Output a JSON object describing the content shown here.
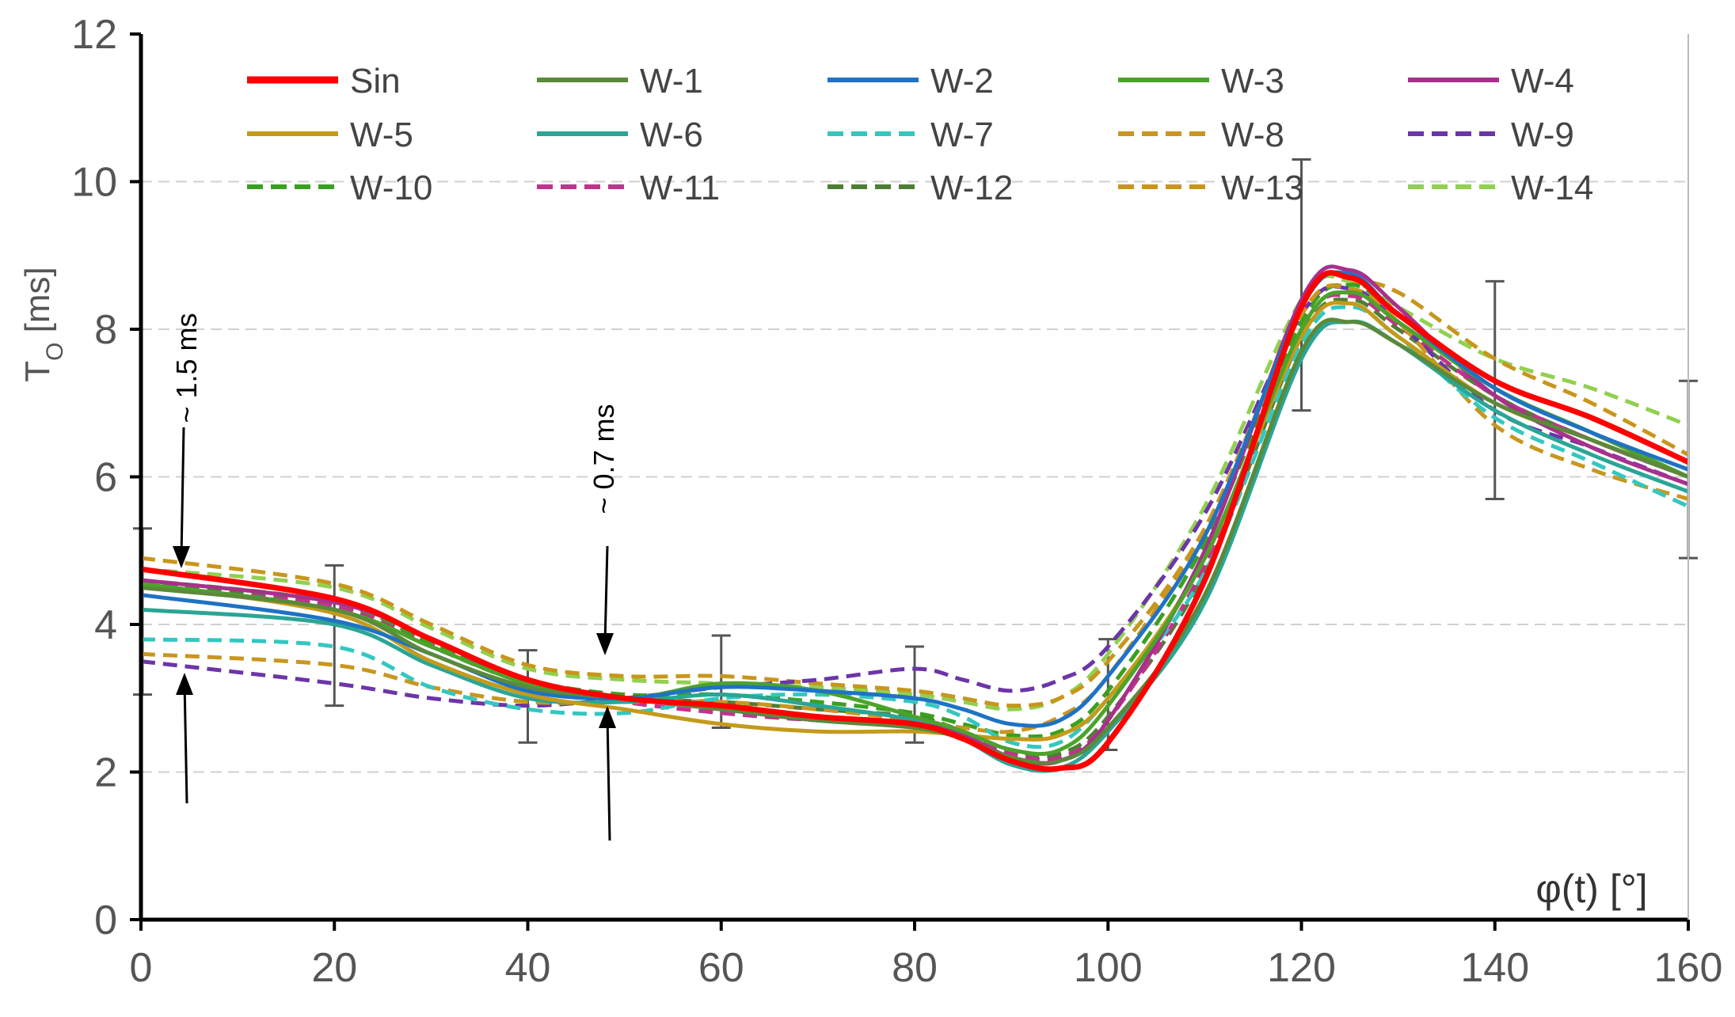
{
  "chart_data": {
    "type": "line",
    "title": "",
    "xlabel": "φ(t) [°]",
    "ylabel": "T",
    "ylabel_sub": "O",
    "ylabel_unit": " [ms]",
    "xlim": [
      0,
      160
    ],
    "ylim": [
      0,
      12
    ],
    "xticks": [
      0,
      20,
      40,
      60,
      80,
      100,
      120,
      140,
      160
    ],
    "yticks": [
      0,
      2,
      4,
      6,
      8,
      10,
      12
    ],
    "grid": "horizontal dashed",
    "annotations": [
      "~ 1.5 ms",
      "~ 0.7 ms"
    ],
    "series": [
      {
        "name": "Sin",
        "color": "#ff0000",
        "dash": "solid",
        "x": [
          0,
          20,
          30,
          40,
          50,
          60,
          70,
          80,
          85,
          90,
          95,
          100,
          110,
          120,
          125,
          130,
          140,
          150,
          160
        ],
        "y": [
          4.75,
          4.35,
          3.8,
          3.25,
          3.0,
          2.9,
          2.75,
          2.65,
          2.45,
          2.15,
          2.05,
          2.4,
          4.6,
          8.3,
          8.7,
          8.2,
          7.3,
          6.8,
          6.2
        ]
      },
      {
        "name": "W-1",
        "color": "#5a8a3a",
        "dash": "solid",
        "x": [
          0,
          20,
          30,
          40,
          50,
          60,
          70,
          80,
          85,
          90,
          95,
          100,
          110,
          120,
          125,
          130,
          140,
          150,
          160
        ],
        "y": [
          4.5,
          4.2,
          3.6,
          3.15,
          3.0,
          2.85,
          2.7,
          2.6,
          2.45,
          2.2,
          2.15,
          2.6,
          4.4,
          7.7,
          8.1,
          7.8,
          7.0,
          6.5,
          6.0
        ]
      },
      {
        "name": "W-2",
        "color": "#1f72c4",
        "dash": "solid",
        "x": [
          0,
          20,
          30,
          40,
          50,
          60,
          70,
          80,
          85,
          90,
          95,
          100,
          110,
          120,
          125,
          130,
          140,
          150,
          160
        ],
        "y": [
          4.4,
          4.05,
          3.6,
          3.1,
          3.0,
          3.15,
          3.1,
          3.0,
          2.85,
          2.65,
          2.7,
          3.3,
          5.2,
          8.3,
          8.75,
          8.2,
          7.2,
          6.6,
          6.1
        ]
      },
      {
        "name": "W-3",
        "color": "#4ca32a",
        "dash": "solid",
        "x": [
          0,
          20,
          30,
          40,
          50,
          60,
          70,
          80,
          85,
          90,
          95,
          100,
          110,
          120,
          125,
          130,
          140,
          150,
          160
        ],
        "y": [
          4.55,
          4.2,
          3.7,
          3.2,
          3.0,
          3.2,
          3.1,
          2.75,
          2.55,
          2.3,
          2.3,
          2.9,
          4.9,
          8.0,
          8.5,
          8.1,
          7.2,
          6.6,
          6.0
        ]
      },
      {
        "name": "W-4",
        "color": "#a8308c",
        "dash": "solid",
        "x": [
          0,
          20,
          30,
          40,
          50,
          60,
          70,
          80,
          85,
          90,
          95,
          100,
          110,
          120,
          125,
          130,
          140,
          150,
          160
        ],
        "y": [
          4.6,
          4.3,
          3.8,
          3.2,
          3.0,
          2.85,
          2.7,
          2.65,
          2.5,
          2.2,
          2.15,
          2.7,
          5.0,
          8.4,
          8.8,
          8.3,
          7.1,
          6.4,
          5.9
        ]
      },
      {
        "name": "W-5",
        "color": "#c49a1a",
        "dash": "solid",
        "x": [
          0,
          20,
          30,
          40,
          50,
          60,
          70,
          80,
          85,
          90,
          95,
          100,
          110,
          120,
          125,
          130,
          140,
          150,
          160
        ],
        "y": [
          4.55,
          4.15,
          3.5,
          3.05,
          2.85,
          2.65,
          2.55,
          2.55,
          2.5,
          2.45,
          2.5,
          3.0,
          4.9,
          7.9,
          8.35,
          7.9,
          7.0,
          6.5,
          6.0
        ]
      },
      {
        "name": "W-6",
        "color": "#2aa596",
        "dash": "solid",
        "x": [
          0,
          20,
          30,
          40,
          50,
          60,
          70,
          80,
          85,
          90,
          95,
          100,
          110,
          120,
          125,
          130,
          140,
          150,
          160
        ],
        "y": [
          4.2,
          4.0,
          3.45,
          3.0,
          2.95,
          3.05,
          2.9,
          2.7,
          2.45,
          2.1,
          2.05,
          2.55,
          4.3,
          7.6,
          8.1,
          7.8,
          6.9,
          6.3,
          5.8
        ]
      },
      {
        "name": "W-7",
        "color": "#33c7c0",
        "dash": "dashed",
        "x": [
          0,
          20,
          30,
          40,
          50,
          60,
          70,
          80,
          85,
          90,
          95,
          100,
          110,
          120,
          125,
          130,
          140,
          150,
          160
        ],
        "y": [
          3.8,
          3.7,
          3.15,
          2.85,
          2.8,
          3.0,
          3.05,
          2.95,
          2.75,
          2.4,
          2.4,
          3.0,
          4.7,
          7.8,
          8.3,
          7.9,
          6.8,
          6.2,
          5.6
        ]
      },
      {
        "name": "W-8",
        "color": "#c9961f",
        "dash": "dashed",
        "x": [
          0,
          20,
          30,
          40,
          50,
          60,
          70,
          80,
          85,
          90,
          95,
          100,
          110,
          120,
          125,
          130,
          140,
          150,
          160
        ],
        "y": [
          3.6,
          3.45,
          3.15,
          2.95,
          2.95,
          2.95,
          2.85,
          2.7,
          2.6,
          2.55,
          2.75,
          3.3,
          5.3,
          8.2,
          8.55,
          8.1,
          6.7,
          6.1,
          5.7
        ]
      },
      {
        "name": "W-9",
        "color": "#6c35a8",
        "dash": "dashed",
        "x": [
          0,
          20,
          30,
          40,
          50,
          60,
          70,
          80,
          85,
          90,
          95,
          100,
          110,
          120,
          125,
          130,
          140,
          150,
          160
        ],
        "y": [
          3.5,
          3.2,
          3.0,
          2.9,
          3.0,
          3.15,
          3.25,
          3.4,
          3.25,
          3.1,
          3.25,
          3.7,
          5.5,
          8.2,
          8.55,
          8.1,
          6.9,
          6.4,
          5.9
        ]
      },
      {
        "name": "W-10",
        "color": "#3aa021",
        "dash": "dashed",
        "x": [
          0,
          20,
          30,
          40,
          50,
          60,
          70,
          80,
          85,
          90,
          95,
          100,
          110,
          120,
          125,
          130,
          140,
          150,
          160
        ],
        "y": [
          4.6,
          4.3,
          3.75,
          3.25,
          3.05,
          3.05,
          2.95,
          2.8,
          2.65,
          2.5,
          2.55,
          3.1,
          5.1,
          8.1,
          8.6,
          8.2,
          7.2,
          6.6,
          6.0
        ]
      },
      {
        "name": "W-11",
        "color": "#c0338c",
        "dash": "dashed",
        "x": [
          0,
          20,
          30,
          40,
          50,
          60,
          70,
          80,
          85,
          90,
          95,
          100,
          110,
          120,
          125,
          130,
          140,
          150,
          160
        ],
        "y": [
          4.5,
          4.25,
          3.75,
          3.2,
          2.95,
          2.8,
          2.7,
          2.65,
          2.5,
          2.25,
          2.2,
          2.7,
          4.8,
          8.0,
          8.45,
          8.05,
          7.1,
          6.5,
          6.0
        ]
      },
      {
        "name": "W-12",
        "color": "#4e7e36",
        "dash": "dashed",
        "x": [
          0,
          20,
          30,
          40,
          50,
          60,
          70,
          80,
          85,
          90,
          95,
          100,
          110,
          120,
          125,
          130,
          140,
          150,
          160
        ],
        "y": [
          4.55,
          4.25,
          3.7,
          3.2,
          3.0,
          2.95,
          2.85,
          2.75,
          2.55,
          2.3,
          2.25,
          2.75,
          4.7,
          7.9,
          8.4,
          8.0,
          7.1,
          6.5,
          6.0
        ]
      },
      {
        "name": "W-13",
        "color": "#c8961c",
        "dash": "dashed",
        "x": [
          0,
          20,
          30,
          40,
          50,
          60,
          70,
          80,
          85,
          90,
          95,
          100,
          110,
          120,
          125,
          130,
          140,
          150,
          160
        ],
        "y": [
          4.9,
          4.55,
          4.0,
          3.45,
          3.3,
          3.3,
          3.2,
          3.1,
          3.0,
          2.9,
          3.0,
          3.5,
          5.3,
          8.2,
          8.6,
          8.5,
          7.6,
          7.0,
          6.3
        ]
      },
      {
        "name": "W-14",
        "color": "#92d050",
        "dash": "dashed",
        "x": [
          0,
          20,
          30,
          40,
          50,
          60,
          70,
          80,
          85,
          90,
          95,
          100,
          110,
          120,
          125,
          130,
          140,
          150,
          160
        ],
        "y": [
          4.75,
          4.5,
          3.95,
          3.4,
          3.25,
          3.2,
          3.15,
          3.05,
          2.95,
          2.85,
          3.0,
          3.6,
          5.6,
          8.4,
          8.65,
          8.3,
          7.6,
          7.2,
          6.7
        ]
      }
    ],
    "error_bars": [
      {
        "x": 0,
        "low": 3.05,
        "high": 5.3
      },
      {
        "x": 20,
        "low": 2.9,
        "high": 4.8
      },
      {
        "x": 40,
        "low": 2.4,
        "high": 3.65
      },
      {
        "x": 60,
        "low": 2.6,
        "high": 3.85
      },
      {
        "x": 80,
        "low": 2.4,
        "high": 3.7
      },
      {
        "x": 100,
        "low": 2.3,
        "high": 3.8
      },
      {
        "x": 120,
        "low": 6.9,
        "high": 10.3
      },
      {
        "x": 140,
        "low": 5.7,
        "high": 8.65
      },
      {
        "x": 160,
        "low": 4.9,
        "high": 7.3
      }
    ]
  }
}
